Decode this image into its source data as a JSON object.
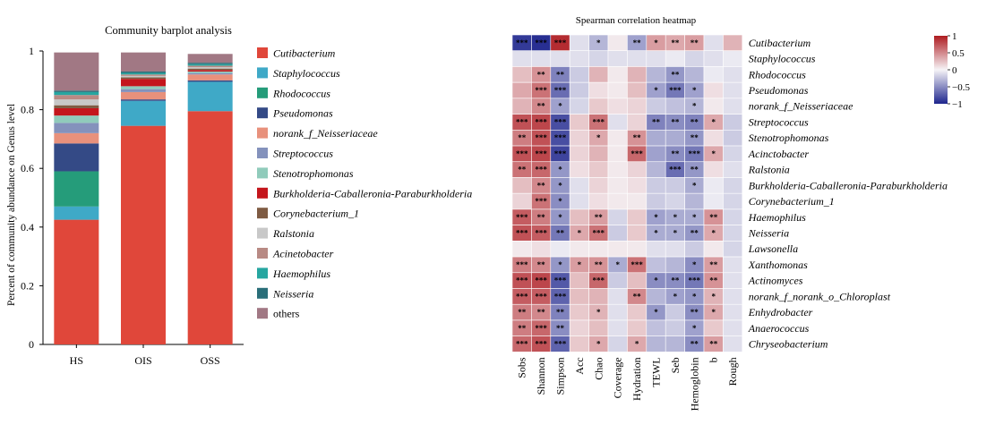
{
  "chart_data": [
    {
      "type": "bar",
      "stacked": true,
      "title": "Community barplot analysis",
      "ylabel": "Percent of community abundance on Genus level",
      "ylim": [
        0,
        1
      ],
      "yticks": [
        "0",
        "0.2",
        "0.4",
        "0.6",
        "0.8",
        "1"
      ],
      "categories": [
        "HS",
        "OIS",
        "OSS"
      ],
      "legend_position": "right",
      "series": [
        {
          "name": "Cutibacterium",
          "color": "#e0473a",
          "values": [
            0.425,
            0.745,
            0.795
          ]
        },
        {
          "name": "Staphylococcus",
          "color": "#3fa9c7",
          "values": [
            0.045,
            0.085,
            0.1
          ]
        },
        {
          "name": "Rhodococcus",
          "color": "#259c7a",
          "values": [
            0.12,
            0.0,
            0.0
          ]
        },
        {
          "name": "Pseudomonas",
          "color": "#344a86",
          "values": [
            0.095,
            0.005,
            0.005
          ]
        },
        {
          "name": "norank_f_Neisseriaceae",
          "color": "#e8917c",
          "values": [
            0.035,
            0.025,
            0.02
          ]
        },
        {
          "name": "Streptococcus",
          "color": "#8492bc",
          "values": [
            0.035,
            0.01,
            0.005
          ]
        },
        {
          "name": "Stenotrophomonas",
          "color": "#90cbbb",
          "values": [
            0.025,
            0.01,
            0.005
          ]
        },
        {
          "name": "Burkholderia-Caballeronia-Paraburkholderia",
          "color": "#c4161c",
          "values": [
            0.025,
            0.025,
            0.005
          ]
        },
        {
          "name": "Corynebacterium_1",
          "color": "#7e5b43",
          "values": [
            0.01,
            0.005,
            0.005
          ]
        },
        {
          "name": "Ralstonia",
          "color": "#c8c8c8",
          "values": [
            0.02,
            0.005,
            0.005
          ]
        },
        {
          "name": "Acinetobacter",
          "color": "#b88a84",
          "values": [
            0.015,
            0.005,
            0.005
          ]
        },
        {
          "name": "Haemophilus",
          "color": "#26a6a0",
          "values": [
            0.01,
            0.005,
            0.005
          ]
        },
        {
          "name": "Neisseria",
          "color": "#2a6e79",
          "values": [
            0.005,
            0.005,
            0.005
          ]
        },
        {
          "name": "others",
          "color": "#a17884",
          "values": [
            0.13,
            0.065,
            0.03
          ]
        }
      ]
    },
    {
      "type": "heatmap",
      "title": "Spearman correlation heatmap",
      "colorbar": {
        "min": -1,
        "max": 1,
        "ticks": [
          "1",
          "0.5",
          "0",
          "−0.5",
          "−1"
        ]
      },
      "columns": [
        "Sobs",
        "Shannon",
        "Simpson",
        "Acc",
        "Chao",
        "Coverage",
        "Hydration",
        "TEWL",
        "Seb",
        "Hemoglobin",
        "b",
        "Rough"
      ],
      "rows": [
        {
          "name": "Cutibacterium",
          "values": [
            -0.9,
            -0.95,
            0.92,
            -0.1,
            -0.3,
            0.05,
            -0.4,
            0.4,
            0.35,
            0.4,
            -0.1,
            0.3
          ],
          "stars": [
            "***",
            "***",
            "***",
            "",
            "*",
            "",
            "**",
            "*",
            "**",
            "**",
            "",
            ""
          ]
        },
        {
          "name": "Staphylococcus",
          "values": [
            -0.1,
            -0.1,
            -0.1,
            -0.1,
            -0.15,
            -0.1,
            -0.1,
            -0.1,
            -0.05,
            -0.15,
            -0.1,
            -0.05
          ],
          "stars": [
            "",
            "",
            "",
            "",
            "",
            "",
            "",
            "",
            "",
            "",
            "",
            ""
          ]
        },
        {
          "name": "Rhodococcus",
          "values": [
            0.25,
            0.45,
            -0.55,
            -0.2,
            0.3,
            0.05,
            0.3,
            -0.3,
            -0.45,
            -0.3,
            -0.05,
            -0.1
          ],
          "stars": [
            "",
            "**",
            "**",
            "",
            "",
            "",
            "",
            "",
            "**",
            "",
            "",
            ""
          ]
        },
        {
          "name": "Pseudomonas",
          "values": [
            0.35,
            0.6,
            -0.65,
            -0.2,
            0.1,
            0.05,
            0.25,
            -0.4,
            -0.6,
            -0.4,
            0.1,
            -0.1
          ],
          "stars": [
            "",
            "***",
            "***",
            "",
            "",
            "",
            "",
            "*",
            "***",
            "*",
            "",
            ""
          ]
        },
        {
          "name": "norank_f_Neisseriaceae",
          "values": [
            0.3,
            0.5,
            -0.4,
            -0.15,
            0.2,
            0.1,
            0.15,
            -0.2,
            -0.25,
            -0.3,
            0.05,
            -0.1
          ],
          "stars": [
            "",
            "**",
            "*",
            "",
            "",
            "",
            "",
            "",
            "",
            "*",
            "",
            ""
          ]
        },
        {
          "name": "Streptococcus",
          "values": [
            0.75,
            0.8,
            -0.8,
            0.2,
            0.6,
            -0.1,
            0.15,
            -0.55,
            -0.5,
            -0.55,
            0.35,
            -0.2
          ],
          "stars": [
            "***",
            "***",
            "***",
            "",
            "***",
            "",
            "",
            "**",
            "**",
            "**",
            "*",
            ""
          ]
        },
        {
          "name": "Stenotrophomonas",
          "values": [
            0.55,
            0.75,
            -0.8,
            0.15,
            0.35,
            0.05,
            0.45,
            -0.35,
            -0.35,
            -0.45,
            0.1,
            -0.2
          ],
          "stars": [
            "**",
            "***",
            "***",
            "",
            "*",
            "",
            "**",
            "",
            "",
            "**",
            "",
            ""
          ]
        },
        {
          "name": "Acinctobacter",
          "values": [
            0.75,
            0.8,
            -0.85,
            0.15,
            0.3,
            0.05,
            0.65,
            -0.4,
            -0.5,
            -0.6,
            0.35,
            -0.15
          ],
          "stars": [
            "***",
            "***",
            "***",
            "",
            "",
            "",
            "***",
            "",
            "**",
            "***",
            "*",
            ""
          ]
        },
        {
          "name": "Ralstonia",
          "values": [
            0.6,
            0.65,
            -0.45,
            0.1,
            0.2,
            0.05,
            0.15,
            -0.3,
            -0.65,
            -0.45,
            0.1,
            -0.1
          ],
          "stars": [
            "**",
            "***",
            "*",
            "",
            "",
            "",
            "",
            "",
            "***",
            "**",
            "",
            ""
          ]
        },
        {
          "name": "Burkholderia-Caballeronia-Paraburkholderia",
          "values": [
            0.25,
            0.5,
            -0.45,
            -0.1,
            0.15,
            0.05,
            0.1,
            -0.2,
            -0.2,
            -0.35,
            -0.05,
            -0.15
          ],
          "stars": [
            "",
            "**",
            "*",
            "",
            "",
            "",
            "",
            "",
            "",
            "*",
            "",
            ""
          ]
        },
        {
          "name": "Corynebacterium_1",
          "values": [
            0.15,
            0.6,
            -0.5,
            -0.1,
            0.1,
            0.05,
            0.05,
            -0.2,
            -0.15,
            -0.3,
            -0.05,
            -0.15
          ],
          "stars": [
            "",
            "***",
            "*",
            "",
            "",
            "",
            "",
            "",
            "",
            "",
            "",
            ""
          ]
        },
        {
          "name": "Haemophilus",
          "values": [
            0.7,
            0.55,
            -0.45,
            0.25,
            0.4,
            -0.15,
            0.2,
            -0.4,
            -0.35,
            -0.35,
            0.45,
            -0.15
          ],
          "stars": [
            "***",
            "**",
            "*",
            "",
            "**",
            "",
            "",
            "*",
            "*",
            "*",
            "**",
            ""
          ]
        },
        {
          "name": "Neisseria",
          "values": [
            0.75,
            0.7,
            -0.6,
            0.35,
            0.6,
            -0.2,
            0.2,
            -0.35,
            -0.35,
            -0.45,
            0.35,
            -0.15
          ],
          "stars": [
            "***",
            "***",
            "**",
            "*",
            "***",
            "",
            "",
            "*",
            "*",
            "**",
            "*",
            ""
          ]
        },
        {
          "name": "Lawsonella",
          "values": [
            0.05,
            0.1,
            -0.05,
            0.05,
            0.05,
            0.05,
            0.05,
            -0.1,
            -0.1,
            -0.2,
            0.05,
            -0.15
          ],
          "stars": [
            "",
            "",
            "",
            "",
            "",
            "",
            "",
            "",
            "",
            "",
            "",
            ""
          ]
        },
        {
          "name": "Xanthomonas",
          "values": [
            0.55,
            0.5,
            -0.45,
            0.4,
            0.45,
            -0.35,
            0.6,
            -0.25,
            -0.3,
            -0.5,
            0.4,
            -0.1
          ],
          "stars": [
            "***",
            "**",
            "*",
            "*",
            "**",
            "*",
            "***",
            "",
            "",
            "*",
            "**",
            ""
          ]
        },
        {
          "name": "Actinomyces",
          "values": [
            0.75,
            0.8,
            -0.75,
            0.25,
            0.65,
            -0.2,
            0.25,
            -0.5,
            -0.5,
            -0.6,
            0.45,
            -0.1
          ],
          "stars": [
            "***",
            "***",
            "***",
            "",
            "***",
            "",
            "",
            "*",
            "**",
            "***",
            "**",
            ""
          ]
        },
        {
          "name": "norank_f_norank_o_Chloroplast",
          "values": [
            0.7,
            0.7,
            -0.7,
            0.25,
            0.3,
            -0.1,
            0.5,
            -0.3,
            -0.4,
            -0.45,
            0.3,
            -0.1
          ],
          "stars": [
            "***",
            "***",
            "***",
            "",
            "",
            "",
            "**",
            "",
            "*",
            "*",
            "*",
            ""
          ]
        },
        {
          "name": "Enhydrobacter",
          "values": [
            0.55,
            0.5,
            -0.55,
            0.2,
            0.3,
            -0.1,
            0.2,
            -0.45,
            -0.2,
            -0.5,
            0.35,
            -0.1
          ],
          "stars": [
            "**",
            "**",
            "**",
            "",
            "*",
            "",
            "",
            "*",
            "",
            "**",
            "*",
            ""
          ]
        },
        {
          "name": "Anaerococcus",
          "values": [
            0.55,
            0.65,
            -0.5,
            0.15,
            0.25,
            -0.1,
            0.2,
            -0.25,
            -0.2,
            -0.4,
            0.2,
            -0.1
          ],
          "stars": [
            "**",
            "***",
            "**",
            "",
            "",
            "",
            "",
            "",
            "",
            "*",
            "",
            ""
          ]
        },
        {
          "name": "Chryseobacterium",
          "values": [
            0.65,
            0.75,
            -0.7,
            0.2,
            0.35,
            -0.15,
            0.35,
            -0.3,
            -0.3,
            -0.5,
            0.4,
            -0.1
          ],
          "stars": [
            "***",
            "***",
            "***",
            "",
            "*",
            "",
            "*",
            "",
            "",
            "**",
            "**",
            ""
          ]
        }
      ]
    }
  ]
}
